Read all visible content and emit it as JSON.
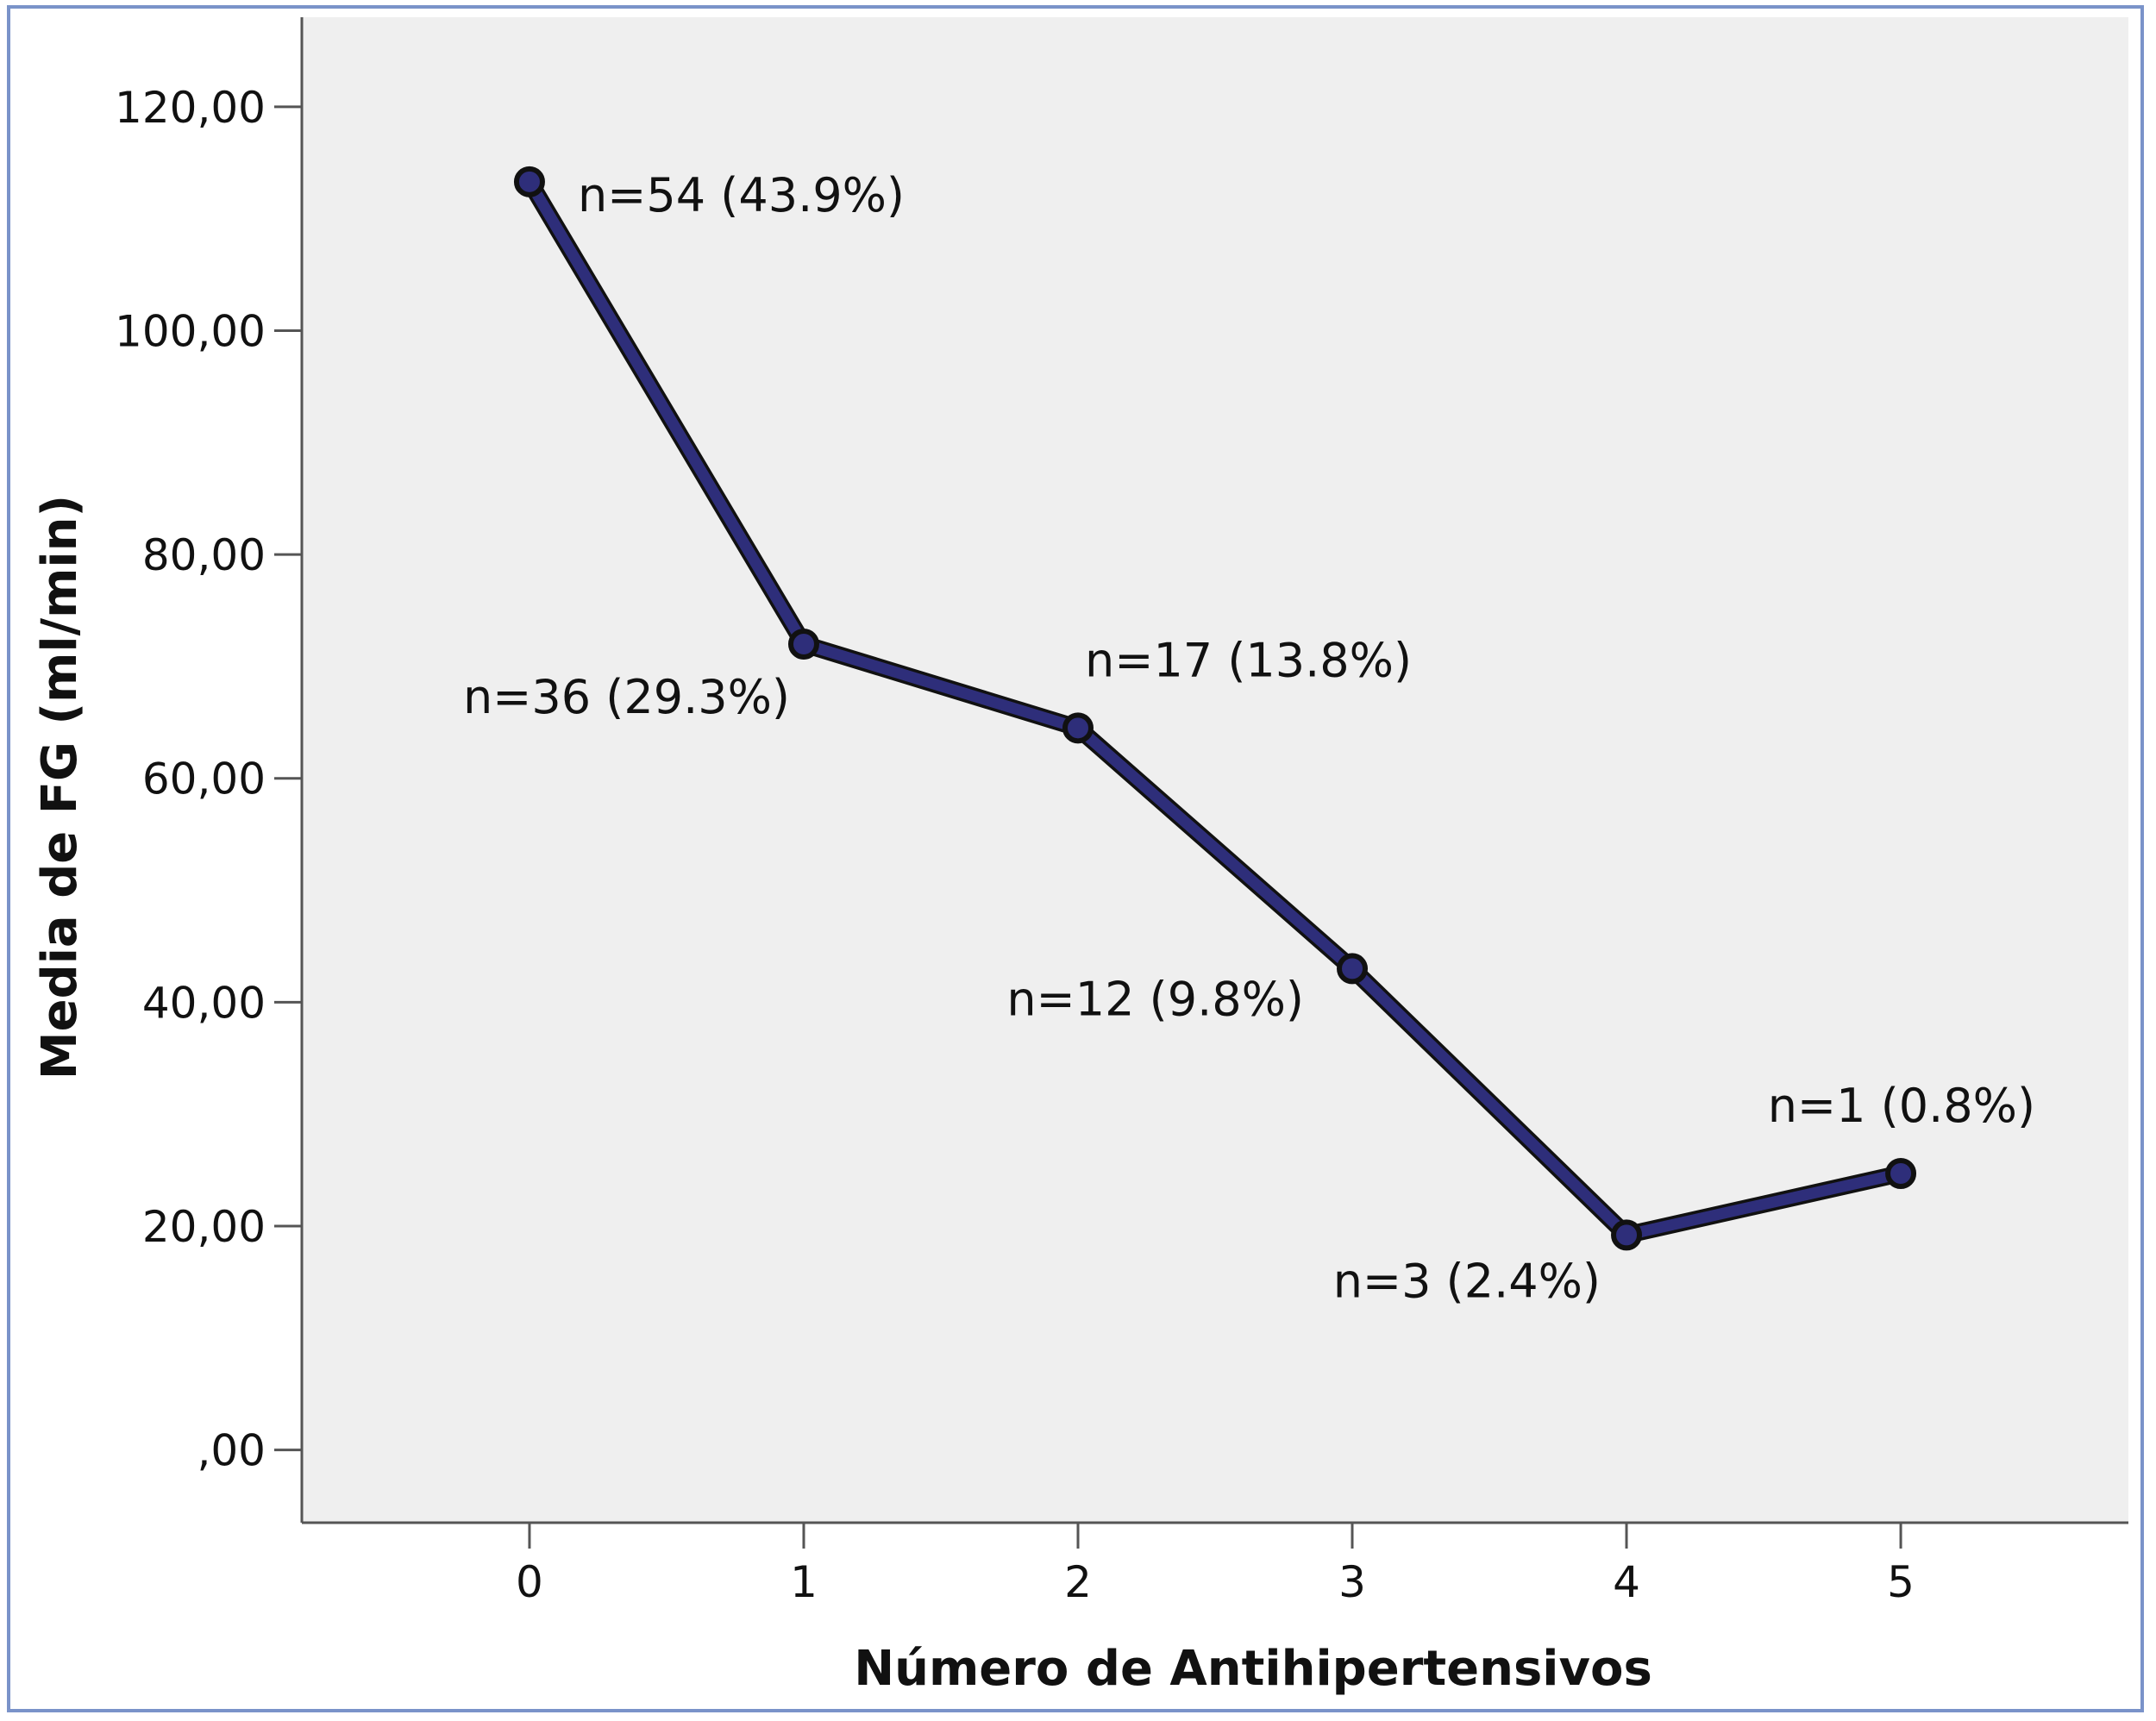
{
  "chart_data": {
    "type": "line",
    "title": "",
    "xlabel": "Número de Antihipertensivos",
    "ylabel": "Media de FG (ml/min)",
    "x": [
      0,
      1,
      2,
      3,
      4,
      5
    ],
    "x_tick_labels": [
      "0",
      "1",
      "2",
      "3",
      "4",
      "5"
    ],
    "xlim": [
      -0.83,
      5.83
    ],
    "ylim": [
      -6.5,
      128
    ],
    "y_ticks": [
      0,
      20,
      40,
      60,
      80,
      100,
      120
    ],
    "y_tick_labels": [
      ",00",
      "20,00",
      "40,00",
      "60,00",
      "80,00",
      "100,00",
      "120,00"
    ],
    "series": [
      {
        "values": [
          113.3,
          72.0,
          64.5,
          43.0,
          19.2,
          24.7
        ],
        "point_labels": [
          "n=54 (43.9%)",
          "n=36 (29.3%)",
          "n=17 (13.8%)",
          "n=12 (9.8%)",
          "n=3 (2.4%)",
          "n=1 (0.8%)"
        ]
      }
    ],
    "grid": false,
    "legend": "none",
    "colors": {
      "line": "#2e2e7a",
      "line_edge": "#111111",
      "plot_background": "#efefef",
      "frame_border": "#7a93c9"
    }
  }
}
